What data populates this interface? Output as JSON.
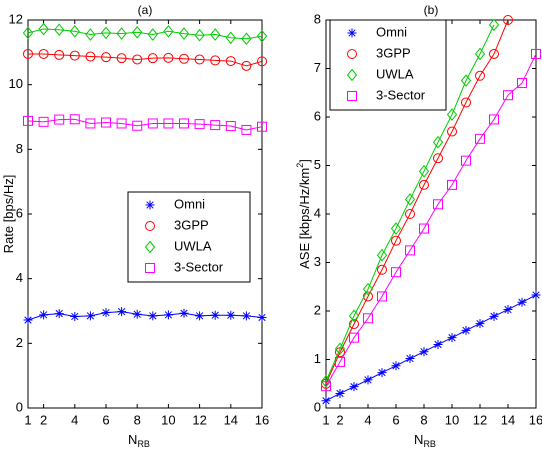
{
  "chart_data": [
    {
      "type": "line",
      "title": "(a)",
      "x_label": {
        "text": "N",
        "subscript": "RB"
      },
      "y_label": {
        "text": "Rate [bps/Hz]"
      },
      "x": [
        1,
        2,
        3,
        4,
        5,
        6,
        7,
        8,
        9,
        10,
        11,
        12,
        13,
        14,
        15,
        16
      ],
      "xlim": [
        1,
        16
      ],
      "xticks": [
        1,
        2,
        4,
        6,
        8,
        10,
        12,
        14,
        16
      ],
      "ylim": [
        0,
        12
      ],
      "yticks": [
        0,
        2,
        4,
        6,
        8,
        10,
        12
      ],
      "legend_loc": "center right",
      "series": [
        {
          "name": "Omni",
          "color": "#0000ff",
          "marker": "star",
          "values": [
            2.72,
            2.88,
            2.92,
            2.83,
            2.85,
            2.95,
            2.98,
            2.9,
            2.85,
            2.88,
            2.93,
            2.85,
            2.87,
            2.87,
            2.85,
            2.8
          ]
        },
        {
          "name": "3GPP",
          "color": "#ff0000",
          "marker": "circle",
          "values": [
            10.95,
            10.95,
            10.92,
            10.9,
            10.87,
            10.85,
            10.82,
            10.78,
            10.82,
            10.83,
            10.8,
            10.78,
            10.75,
            10.73,
            10.58,
            10.72
          ]
        },
        {
          "name": "UWLA",
          "color": "#00cc00",
          "marker": "diamond",
          "values": [
            11.6,
            11.72,
            11.7,
            11.65,
            11.55,
            11.6,
            11.58,
            11.62,
            11.55,
            11.65,
            11.58,
            11.53,
            11.55,
            11.45,
            11.42,
            11.5
          ]
        },
        {
          "name": "3-Sector",
          "color": "#ff00ff",
          "marker": "square",
          "values": [
            8.88,
            8.85,
            8.92,
            8.93,
            8.8,
            8.83,
            8.8,
            8.73,
            8.8,
            8.8,
            8.8,
            8.78,
            8.75,
            8.72,
            8.6,
            8.7
          ]
        }
      ]
    },
    {
      "type": "line",
      "title": "(b)",
      "x_label": {
        "text": "N",
        "subscript": "RB"
      },
      "y_label": {
        "text": "ASE [kbps/Hz/km",
        "superscript": "2",
        "text_after": "]"
      },
      "x": [
        1,
        2,
        3,
        4,
        5,
        6,
        7,
        8,
        9,
        10,
        11,
        12,
        13,
        14,
        15,
        16
      ],
      "xlim": [
        1,
        16
      ],
      "xticks": [
        1,
        2,
        4,
        6,
        8,
        10,
        12,
        14,
        16
      ],
      "ylim": [
        0,
        8
      ],
      "yticks": [
        0,
        1,
        2,
        3,
        4,
        5,
        6,
        7,
        8
      ],
      "legend_loc": "upper left",
      "series": [
        {
          "name": "Omni",
          "color": "#0000ff",
          "marker": "star",
          "values": [
            0.15,
            0.3,
            0.44,
            0.58,
            0.73,
            0.87,
            1.02,
            1.16,
            1.31,
            1.45,
            1.6,
            1.74,
            1.89,
            2.03,
            2.18,
            2.33
          ]
        },
        {
          "name": "3GPP",
          "color": "#ff0000",
          "marker": "circle",
          "values": [
            0.5,
            1.15,
            1.73,
            2.3,
            2.85,
            3.45,
            4.0,
            4.6,
            5.15,
            5.7,
            6.3,
            6.85,
            7.3,
            8.0,
            null,
            null
          ]
        },
        {
          "name": "UWLA",
          "color": "#00cc00",
          "marker": "diamond",
          "values": [
            0.55,
            1.22,
            1.9,
            2.45,
            3.15,
            3.7,
            4.3,
            4.88,
            5.48,
            6.05,
            6.75,
            7.3,
            7.9,
            null,
            null,
            null
          ]
        },
        {
          "name": "3-Sector",
          "color": "#ff00ff",
          "marker": "square",
          "values": [
            0.45,
            0.95,
            1.45,
            1.85,
            2.3,
            2.8,
            3.25,
            3.7,
            4.2,
            4.6,
            5.1,
            5.55,
            5.95,
            6.45,
            6.7,
            7.3
          ]
        }
      ]
    }
  ]
}
